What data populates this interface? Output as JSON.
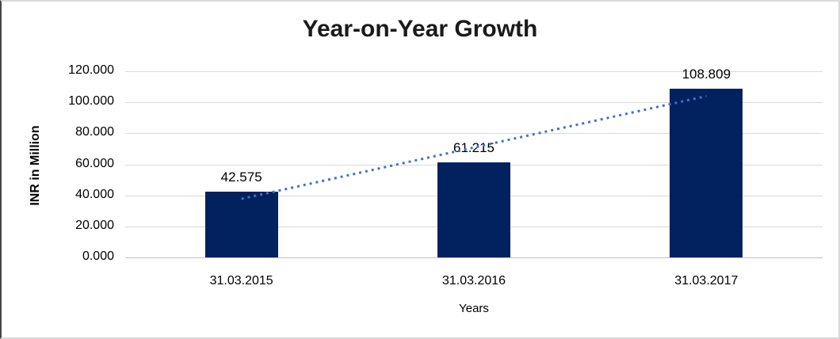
{
  "chart_data": {
    "type": "bar",
    "title": "Year-on-Year Growth",
    "xlabel": "Years",
    "ylabel": "INR in Million",
    "categories": [
      "31.03.2015",
      "31.03.2016",
      "31.03.2017"
    ],
    "values": [
      42.575,
      61.215,
      108.809
    ],
    "data_labels": [
      "42.575",
      "61.215",
      "108.809"
    ],
    "ylim": [
      0,
      120
    ],
    "ytick_labels": [
      "0.000",
      "20.000",
      "40.000",
      "60.000",
      "80.000",
      "100.000",
      "120.000"
    ],
    "grid": true,
    "legend_position": "none",
    "bar_color": "#02215F",
    "gridline_color": "#D9D9D9",
    "axis_line_color": "#BFBFBF",
    "text_color": "#000000",
    "trendline": {
      "type": "linear",
      "style": "dotted",
      "color": "#4472C4"
    }
  }
}
